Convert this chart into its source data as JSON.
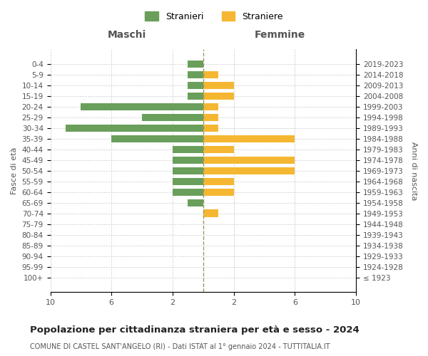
{
  "age_groups": [
    "100+",
    "95-99",
    "90-94",
    "85-89",
    "80-84",
    "75-79",
    "70-74",
    "65-69",
    "60-64",
    "55-59",
    "50-54",
    "45-49",
    "40-44",
    "35-39",
    "30-34",
    "25-29",
    "20-24",
    "15-19",
    "10-14",
    "5-9",
    "0-4"
  ],
  "birth_years": [
    "≤ 1923",
    "1924-1928",
    "1929-1933",
    "1934-1938",
    "1939-1943",
    "1944-1948",
    "1949-1953",
    "1954-1958",
    "1959-1963",
    "1964-1968",
    "1969-1973",
    "1974-1978",
    "1979-1983",
    "1984-1988",
    "1989-1993",
    "1994-1998",
    "1999-2003",
    "2004-2008",
    "2009-2013",
    "2014-2018",
    "2019-2023"
  ],
  "stranieri": [
    0,
    0,
    0,
    0,
    0,
    0,
    0,
    1,
    2,
    2,
    2,
    2,
    2,
    6,
    9,
    4,
    8,
    1,
    1,
    1,
    1
  ],
  "straniere": [
    0,
    0,
    0,
    0,
    0,
    0,
    1,
    0,
    2,
    2,
    6,
    6,
    2,
    6,
    1,
    1,
    1,
    2,
    2,
    1,
    0
  ],
  "color_stranieri": "#6a9f5b",
  "color_straniere": "#f5b731",
  "title": "Popolazione per cittadinanza straniera per età e sesso - 2024",
  "subtitle": "COMUNE DI CASTEL SANT'ANGELO (RI) - Dati ISTAT al 1° gennaio 2024 - TUTTITALIA.IT",
  "xlabel_left": "Maschi",
  "xlabel_right": "Femmine",
  "ylabel_left": "Fasce di età",
  "ylabel_right": "Anni di nascita",
  "legend_stranieri": "Stranieri",
  "legend_straniere": "Straniere",
  "xlim": 10,
  "display_ticks": [
    -10,
    -6,
    -2,
    2,
    6,
    10
  ],
  "display_labels": [
    "10",
    "6",
    "2",
    "2",
    "6",
    "10"
  ],
  "bg_color": "#ffffff",
  "grid_color": "#cccccc",
  "bar_height": 0.7
}
